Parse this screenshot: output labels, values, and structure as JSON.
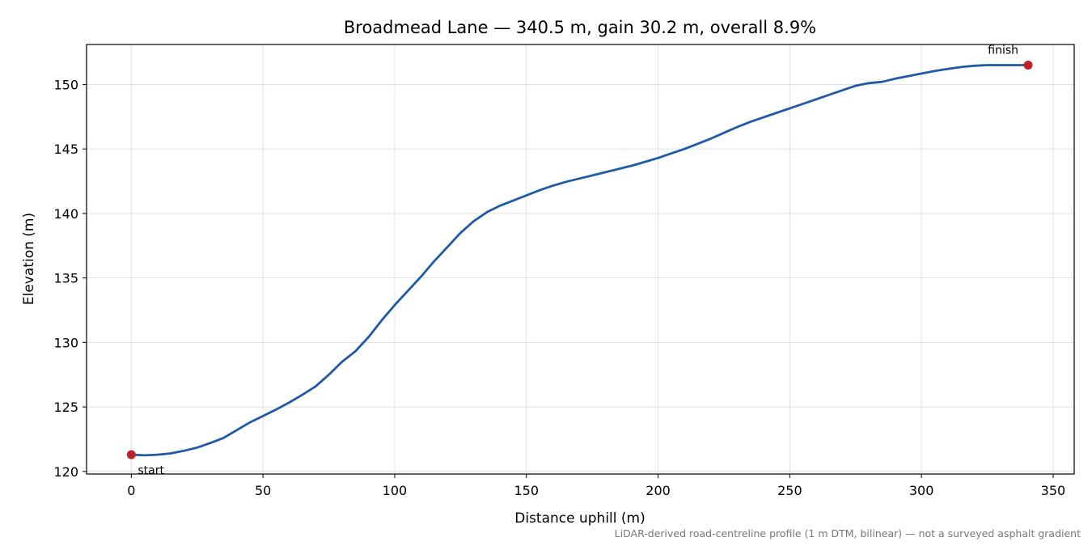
{
  "chart_data": {
    "type": "line",
    "title": "Broadmead Lane — 340.5 m, gain 30.2 m, overall 8.9%",
    "xlabel": "Distance uphill (m)",
    "ylabel": "Elevation (m)",
    "footnote": "LiDAR-derived road-centreline profile (1 m DTM, bilinear) — not a surveyed asphalt gradient",
    "xlim": [
      -17,
      358
    ],
    "ylim": [
      119.8,
      153.1
    ],
    "xticks": [
      0,
      50,
      100,
      150,
      200,
      250,
      300,
      350
    ],
    "yticks": [
      120,
      125,
      130,
      135,
      140,
      145,
      150
    ],
    "grid": true,
    "line_color": "#1f5aa6",
    "marker_color": "#c0202a",
    "series": [
      {
        "x": [
          0,
          5,
          10,
          15,
          20,
          25,
          30,
          35,
          40,
          45,
          50,
          55,
          60,
          65,
          70,
          75,
          80,
          85,
          90,
          95,
          100,
          105,
          110,
          115,
          120,
          125,
          130,
          135,
          140,
          145,
          150,
          155,
          160,
          165,
          170,
          175,
          180,
          185,
          190,
          195,
          200,
          205,
          210,
          215,
          220,
          225,
          230,
          235,
          240,
          245,
          250,
          255,
          260,
          265,
          270,
          275,
          280,
          285,
          290,
          295,
          300,
          305,
          310,
          315,
          320,
          325,
          330,
          335,
          340.5
        ],
        "y": [
          121.3,
          121.25,
          121.3,
          121.4,
          121.6,
          121.85,
          122.2,
          122.6,
          123.2,
          123.8,
          124.3,
          124.8,
          125.35,
          125.95,
          126.6,
          127.5,
          128.5,
          129.3,
          130.4,
          131.7,
          132.9,
          134.0,
          135.1,
          136.3,
          137.4,
          138.5,
          139.4,
          140.1,
          140.6,
          141.0,
          141.4,
          141.8,
          142.15,
          142.45,
          142.7,
          142.95,
          143.2,
          143.45,
          143.7,
          144.0,
          144.3,
          144.65,
          145.0,
          145.4,
          145.8,
          146.25,
          146.7,
          147.1,
          147.45,
          147.8,
          148.15,
          148.5,
          148.85,
          149.2,
          149.55,
          149.9,
          150.1,
          150.2,
          150.45,
          150.65,
          150.85,
          151.05,
          151.2,
          151.35,
          151.45,
          151.5,
          151.5,
          151.5,
          151.5
        ]
      }
    ],
    "annotations": [
      {
        "label": "start",
        "x": 0,
        "y": 121.3
      },
      {
        "label": "finish",
        "x": 340.5,
        "y": 151.5
      }
    ]
  }
}
